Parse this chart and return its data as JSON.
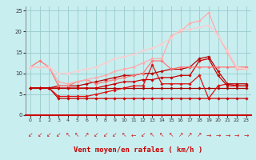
{
  "title": "",
  "xlabel": "Vent moyen/en rafales ( km/h )",
  "ylabel": "",
  "xlim": [
    -0.5,
    23.5
  ],
  "ylim": [
    0,
    26
  ],
  "yticks": [
    0,
    5,
    10,
    15,
    20,
    25
  ],
  "xticks": [
    0,
    1,
    2,
    3,
    4,
    5,
    6,
    7,
    8,
    9,
    10,
    11,
    12,
    13,
    14,
    15,
    16,
    17,
    18,
    19,
    20,
    21,
    22,
    23
  ],
  "bg_color": "#c8eef0",
  "grid_color": "#99cccc",
  "series": [
    {
      "x": [
        0,
        1,
        2,
        3,
        4,
        5,
        6,
        7,
        8,
        9,
        10,
        11,
        12,
        13,
        14,
        15,
        16,
        17,
        18,
        19,
        20,
        21,
        22,
        23
      ],
      "y": [
        6.5,
        6.5,
        6.5,
        6.5,
        6.5,
        6.5,
        6.5,
        6.5,
        6.5,
        6.5,
        6.5,
        6.5,
        6.5,
        6.5,
        6.5,
        6.5,
        6.5,
        6.5,
        6.5,
        6.5,
        6.5,
        6.5,
        6.5,
        6.5
      ],
      "color": "#aa0000",
      "lw": 0.9,
      "marker": "D",
      "ms": 1.8
    },
    {
      "x": [
        0,
        1,
        2,
        3,
        4,
        5,
        6,
        7,
        8,
        9,
        10,
        11,
        12,
        13,
        14,
        15,
        16,
        17,
        18,
        19,
        20,
        21,
        22,
        23
      ],
      "y": [
        6.5,
        6.5,
        6.5,
        4.0,
        4.0,
        4.0,
        4.0,
        4.0,
        4.0,
        4.0,
        4.0,
        4.0,
        4.0,
        4.0,
        4.0,
        4.0,
        4.0,
        4.0,
        4.0,
        4.0,
        4.0,
        4.0,
        4.0,
        4.0
      ],
      "color": "#cc0000",
      "lw": 0.9,
      "marker": "D",
      "ms": 1.8
    },
    {
      "x": [
        0,
        1,
        2,
        3,
        4,
        5,
        6,
        7,
        8,
        9,
        10,
        11,
        12,
        13,
        14,
        15,
        16,
        17,
        18,
        19,
        20,
        21,
        22,
        23
      ],
      "y": [
        6.5,
        6.5,
        6.5,
        4.5,
        4.5,
        4.5,
        4.5,
        5.0,
        5.5,
        6.0,
        6.5,
        7.0,
        7.0,
        12.0,
        7.5,
        7.5,
        7.5,
        7.5,
        9.5,
        4.0,
        7.0,
        7.5,
        7.0,
        7.0
      ],
      "color": "#dd1111",
      "lw": 0.9,
      "marker": "D",
      "ms": 1.8
    },
    {
      "x": [
        0,
        1,
        2,
        3,
        4,
        5,
        6,
        7,
        8,
        9,
        10,
        11,
        12,
        13,
        14,
        15,
        16,
        17,
        18,
        19,
        20,
        21,
        22,
        23
      ],
      "y": [
        6.5,
        6.5,
        6.5,
        6.5,
        6.5,
        6.5,
        6.5,
        6.5,
        7.0,
        7.5,
        8.0,
        8.0,
        8.5,
        8.5,
        9.0,
        9.0,
        9.5,
        9.5,
        13.0,
        13.5,
        9.5,
        7.0,
        7.0,
        7.0
      ],
      "color": "#cc0000",
      "lw": 0.9,
      "marker": "D",
      "ms": 1.8
    },
    {
      "x": [
        0,
        1,
        2,
        3,
        4,
        5,
        6,
        7,
        8,
        9,
        10,
        11,
        12,
        13,
        14,
        15,
        16,
        17,
        18,
        19,
        20,
        21,
        22,
        23
      ],
      "y": [
        6.5,
        6.5,
        6.5,
        7.0,
        7.0,
        7.0,
        7.5,
        8.0,
        8.5,
        9.0,
        9.5,
        9.5,
        10.0,
        10.0,
        10.5,
        11.0,
        11.0,
        11.5,
        13.5,
        14.0,
        10.5,
        7.5,
        7.5,
        7.5
      ],
      "color": "#bb0000",
      "lw": 0.9,
      "marker": "D",
      "ms": 1.8
    },
    {
      "x": [
        0,
        1,
        2,
        3,
        4,
        5,
        6,
        7,
        8,
        9,
        10,
        11,
        12,
        13,
        14,
        15,
        16,
        17,
        18,
        19,
        20,
        21,
        22,
        23
      ],
      "y": [
        11.5,
        13.0,
        11.5,
        7.0,
        7.0,
        8.0,
        8.5,
        7.5,
        8.0,
        8.5,
        9.0,
        9.5,
        10.0,
        13.0,
        13.0,
        11.0,
        11.5,
        11.5,
        11.5,
        11.5,
        11.5,
        11.5,
        11.5,
        11.5
      ],
      "color": "#ff7777",
      "lw": 0.9,
      "marker": "D",
      "ms": 1.8
    },
    {
      "x": [
        0,
        1,
        2,
        3,
        4,
        5,
        6,
        7,
        8,
        9,
        10,
        11,
        12,
        13,
        14,
        15,
        16,
        17,
        18,
        19,
        20,
        21,
        22,
        23
      ],
      "y": [
        11.5,
        11.5,
        11.5,
        8.0,
        7.5,
        8.0,
        8.5,
        9.0,
        9.5,
        10.5,
        11.0,
        11.5,
        12.5,
        13.5,
        13.5,
        19.0,
        20.0,
        22.0,
        22.5,
        24.5,
        19.0,
        15.0,
        11.0,
        11.0
      ],
      "color": "#ffaaaa",
      "lw": 0.9,
      "marker": "D",
      "ms": 1.8
    },
    {
      "x": [
        0,
        1,
        2,
        3,
        4,
        5,
        6,
        7,
        8,
        9,
        10,
        11,
        12,
        13,
        14,
        15,
        16,
        17,
        18,
        19,
        20,
        21,
        22,
        23
      ],
      "y": [
        11.5,
        11.5,
        11.5,
        10.0,
        10.0,
        10.5,
        11.0,
        11.5,
        12.5,
        13.5,
        14.0,
        14.5,
        15.5,
        16.0,
        17.0,
        18.5,
        20.5,
        20.5,
        21.0,
        21.5,
        19.0,
        15.5,
        11.5,
        11.0
      ],
      "color": "#ffcccc",
      "lw": 0.9,
      "marker": "D",
      "ms": 1.8
    }
  ],
  "wind_arrows": [
    "↙",
    "↙",
    "↙",
    "↙",
    "↖",
    "↖",
    "↗",
    "↙",
    "↙",
    "↙",
    "↖",
    "←",
    "↙",
    "↖",
    "↖",
    "↖",
    "↗",
    "↗",
    "↗",
    "→",
    "→",
    "→",
    "→",
    "→"
  ],
  "arrow_color": "#cc2222",
  "xlabel_color": "#cc0000"
}
